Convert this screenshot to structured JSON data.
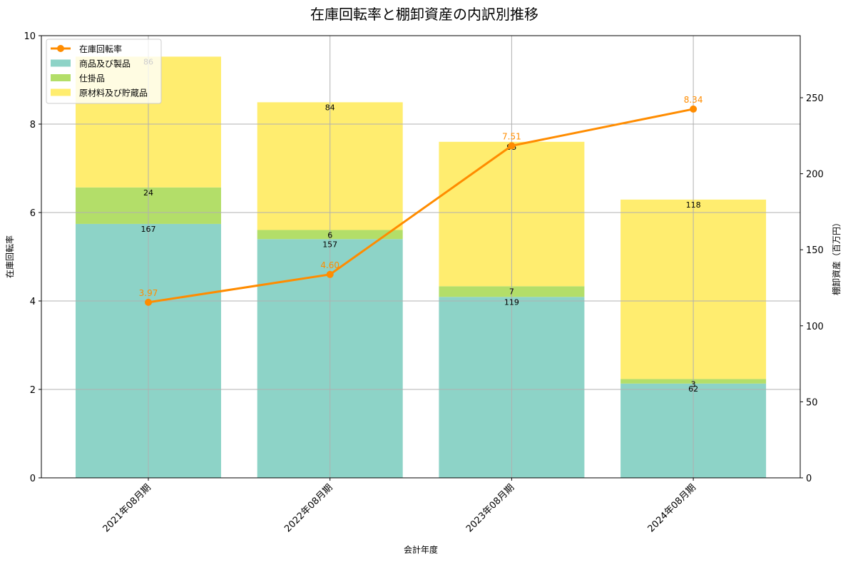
{
  "chart_data": {
    "type": "bar",
    "subtype": "stacked_bar_with_line_secondary_axis",
    "title": "在庫回転率と棚卸資産の内訳別推移",
    "xlabel": "会計年度",
    "ylabel_left": "在庫回転率",
    "ylabel_right": "棚卸資産（百万円）",
    "categories": [
      "2021年08月期",
      "2022年08月期",
      "2023年08月期",
      "2024年08月期"
    ],
    "series": [
      {
        "name": "商品及び製品",
        "type": "bar",
        "axis": "right",
        "color": "#8dd3c7",
        "values": [
          167,
          157,
          119,
          62
        ]
      },
      {
        "name": "仕掛品",
        "type": "bar",
        "axis": "right",
        "color": "#b3de69",
        "values": [
          24,
          6,
          7,
          3
        ]
      },
      {
        "name": "原材料及び貯蔵品",
        "type": "bar",
        "axis": "right",
        "color": "#ffed6f",
        "values": [
          86,
          84,
          95,
          118
        ]
      },
      {
        "name": "在庫回転率",
        "type": "line",
        "axis": "left",
        "color": "#ff8c00",
        "values": [
          3.97,
          4.6,
          7.51,
          8.34
        ],
        "labels": [
          "3.97",
          "4.60",
          "7.51",
          "8.34"
        ]
      }
    ],
    "ylim_left": [
      0,
      10
    ],
    "ylim_right": [
      0,
      290.8
    ],
    "yticks_left": [
      "0",
      "2",
      "4",
      "6",
      "8",
      "10"
    ],
    "yticks_right": [
      "0",
      "50",
      "100",
      "150",
      "200",
      "250"
    ],
    "grid": true,
    "legend_position": "upper left"
  },
  "legend": {
    "items": [
      {
        "label": "在庫回転率",
        "kind": "line",
        "color": "#ff8c00"
      },
      {
        "label": "商品及び製品",
        "kind": "patch",
        "color": "#8dd3c7"
      },
      {
        "label": "仕掛品",
        "kind": "patch",
        "color": "#b3de69"
      },
      {
        "label": "原材料及び貯蔵品",
        "kind": "patch",
        "color": "#ffed6f"
      }
    ]
  }
}
